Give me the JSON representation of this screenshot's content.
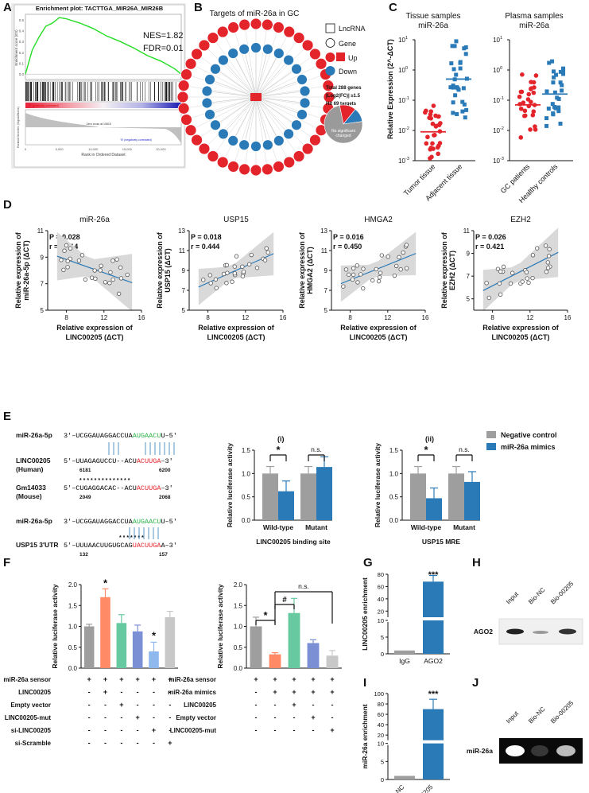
{
  "panels": {
    "A": "A",
    "B": "B",
    "C": "C",
    "D": "D",
    "E": "E",
    "F": "F",
    "G": "G",
    "H": "H",
    "I": "I",
    "J": "J"
  },
  "colors": {
    "red": "#e3242b",
    "blue": "#2a7ab8",
    "gray": "#9e9e9e",
    "green": "#2db34a",
    "orange": "#ff8a65",
    "mint": "#66c9a0",
    "purple": "#7b8fd4",
    "lightblue": "#8fb8ee",
    "lightgray": "#c8c8c8"
  },
  "panelA": {
    "title": "Enrichment plot: TACTTGA_MIR26A_MIR26B",
    "nes": "NES=1.82",
    "fdr": "FDR=0.01",
    "ylabel": "Enrichment score (ES)",
    "ylabel2": "Ranked list metric (Signal2Noise)",
    "xlabel": "Rank in Ordered Dataset",
    "pos_label": "'P' (positively correlated)",
    "neg_label": "'N' (negatively correlated)",
    "zero_cross": "Zero cross at 10815",
    "es_ticks": [
      "0.5",
      "0.4",
      "0.3",
      "0.2",
      "0.1",
      "0.0"
    ],
    "x_ticks": [
      "0",
      "5,000",
      "10,000",
      "15,000",
      "20,000"
    ]
  },
  "panelB": {
    "title": "Targets of miR-26a in GC",
    "legend": {
      "lncrna": "LncRNA",
      "gene": "Gene",
      "up": "Up",
      "down": "Down"
    },
    "stats_line1": "Total 288 genes",
    "stats_line2": "|Log2(FC)| ≥1.5",
    "stats_line3": "Hit 69 targets",
    "center_label": "LINC00205",
    "pie_labels": [
      "Up",
      "Down",
      "No significant changed"
    ],
    "pie_values": [
      14,
      12,
      74
    ]
  },
  "panelC": {
    "title_left": "Tissue samples\nmiR-26a",
    "title_left_1": "Tissue samples",
    "title_left_2": "miR-26a",
    "title_right_1": "Plasma samples",
    "title_right_2": "miR-26a",
    "ylabel": "Relative Expression (2^-ΔCT)",
    "yticks_left": [
      "10^1",
      "10^0",
      "10^-1",
      "10^-2",
      "10^-3"
    ],
    "yticks_right": [
      "10^1",
      "10^0",
      "10^-1",
      "10^-2",
      "10^-3"
    ],
    "xcats_left": [
      "Tumor tissue",
      "Adjacent tissue"
    ],
    "xcats_right": [
      "GC patients",
      "Healthy controls"
    ]
  },
  "panelD": [
    {
      "title": "miR-26a",
      "p": "P = 0.028",
      "r": "r = 0.414",
      "ylabel": "Relative expression of miR-26a-5p (ΔCT)",
      "yl1": "Relative expression of",
      "yl2": "miR-26a-5p (ΔCT)",
      "yticks": [
        "11",
        "9",
        "7",
        "5"
      ],
      "xticks": [
        "8",
        "12",
        "16"
      ],
      "xl1": "Relative expression of",
      "xl2": "LINC00205 (ΔCT)"
    },
    {
      "title": "USP15",
      "p": "P = 0.018",
      "r": "r = 0.444",
      "yl1": "Relative expression of",
      "yl2": "USP15 (ΔCT)",
      "yticks": [
        "13",
        "11",
        "9",
        "7",
        "5"
      ],
      "xticks": [
        "8",
        "12",
        "16"
      ],
      "xl1": "Relative expression of",
      "xl2": "LINC00205 (ΔCT)"
    },
    {
      "title": "HMGA2",
      "p": "P = 0.016",
      "r": "r = 0.450",
      "yl1": "Relative expression of",
      "yl2": "HMGA2 (ΔCT)",
      "yticks": [
        "13",
        "11",
        "9",
        "7",
        "5"
      ],
      "xticks": [
        "8",
        "12",
        "16"
      ],
      "xl1": "Relative expression of",
      "xl2": "LINC00205 (ΔCT)"
    },
    {
      "title": "EZH2",
      "p": "P = 0.026",
      "r": "r = 0.421",
      "yl1": "Relative expression of",
      "yl2": "EZH2 (ΔCT)",
      "yticks": [
        "11",
        "9",
        "7",
        "5"
      ],
      "xticks": [
        "8",
        "12",
        "16"
      ],
      "xl1": "Relative expression of",
      "xl2": "LINC00205 (ΔCT)"
    }
  ],
  "panelE": {
    "seq": [
      {
        "name": "miR-26a-5p",
        "prefix": "3′–UCGGAUAGGACCUA",
        "hl": "AUGAACU",
        "suffix": "U–5′",
        "hlcolor": "green"
      },
      {
        "name": "LINC00205",
        "name2": "(Human)",
        "prefix": "5′–UUAGAGUCCU--ACU",
        "hl": "ACUUGA",
        "suffix": "–3′",
        "hlcolor": "red",
        "n1": "6181",
        "n2": "6200"
      },
      {
        "name": "Gm14033",
        "name2": "(Mouse)",
        "prefix": "5′–CUGAGGACAC--ACU",
        "hl": "ACUUGA",
        "suffix": "–3′",
        "hlcolor": "red",
        "n1": "2049",
        "n2": "2068",
        "stars": "*    *   *   * * * * * * * * * * *"
      },
      {
        "name": "miR-26a-5p",
        "prefix": "3′–UCGGAUAGGACCUA",
        "hl": "AUGAACU",
        "suffix": "U–5′",
        "hlcolor": "green"
      },
      {
        "name": "USP15 3′UTR",
        "prefix": "5′–UUUAACUUGUGCAG",
        "hl": "UACUUGA",
        "suffix": "A–3′",
        "hlcolor": "red",
        "n1": "132",
        "n2": "157",
        "stars": "* * * * * * *"
      }
    ],
    "sub_i": "(i)",
    "sub_ii": "(ii)",
    "legend": [
      "Negative control",
      "miR-26a mimics"
    ],
    "ylabel": "Relative luciferase activity",
    "yticks": [
      "1.5",
      "1.0",
      "0.5",
      "0.0"
    ],
    "i_cats": [
      "Wild-type",
      "Mutant"
    ],
    "i_xlabel": "LINC00205 binding site",
    "ii_cats": [
      "Wild-type",
      "Mutant"
    ],
    "ii_xlabel": "USP15 MRE",
    "sig": [
      "*",
      "n.s."
    ]
  },
  "panelF": {
    "ylabel": "Relative luciferase activity",
    "yticks_left": [
      "2.0",
      "1.5",
      "1.0",
      "0.5",
      "0.0"
    ],
    "yticks_right": [
      "2.0",
      "1.5",
      "1.0",
      "0.5",
      "0.0"
    ],
    "rows_left": [
      {
        "label": "miR-26a sensor",
        "vals": [
          "+",
          "+",
          "+",
          "+",
          "+",
          "+"
        ]
      },
      {
        "label": "LINC00205",
        "vals": [
          "-",
          "+",
          "-",
          "-",
          "-",
          "-"
        ]
      },
      {
        "label": "Empty vector",
        "vals": [
          "-",
          "-",
          "+",
          "-",
          "-",
          "-"
        ]
      },
      {
        "label": "LINC00205-mut",
        "vals": [
          "-",
          "-",
          "-",
          "+",
          "-",
          "-"
        ]
      },
      {
        "label": "si-LINC00205",
        "vals": [
          "-",
          "-",
          "-",
          "-",
          "+",
          "-"
        ]
      },
      {
        "label": "si-Scramble",
        "vals": [
          "-",
          "-",
          "-",
          "-",
          "-",
          "+"
        ]
      }
    ],
    "rows_right": [
      {
        "label": "miR-26a sensor",
        "vals": [
          "+",
          "+",
          "+",
          "+",
          "+"
        ]
      },
      {
        "label": "miR-26a mimics",
        "vals": [
          "-",
          "+",
          "+",
          "+",
          "+"
        ]
      },
      {
        "label": "LINC00205",
        "vals": [
          "-",
          "-",
          "+",
          "-",
          "-"
        ]
      },
      {
        "label": "Empty vector",
        "vals": [
          "-",
          "-",
          "-",
          "+",
          "-"
        ]
      },
      {
        "label": "LINC00205-mut",
        "vals": [
          "-",
          "-",
          "-",
          "-",
          "+"
        ]
      }
    ],
    "sig_left": [
      "*",
      "*"
    ],
    "sig_right": [
      "*",
      "#",
      "n.s."
    ]
  },
  "panelG": {
    "ylabel": "LINC00205 enrichment",
    "cats": [
      "IgG",
      "AGO2"
    ],
    "sig": "***",
    "yticks": [
      "80",
      "60",
      "40",
      "20",
      "10",
      "5",
      "0"
    ]
  },
  "panelH": {
    "lanes": [
      "Input",
      "Bio-NC",
      "Bio-00205"
    ],
    "row_label": "AGO2"
  },
  "panelI": {
    "ylabel": "miR-26a enrichment",
    "cats": [
      "Bio-NC",
      "Bio-00205"
    ],
    "sig": "***",
    "yticks": [
      "100",
      "80",
      "60",
      "40",
      "20",
      "10",
      "5",
      "0"
    ]
  },
  "panelJ": {
    "lanes": [
      "Input",
      "Bio-NC",
      "Bio-00205"
    ],
    "row_label": "miR-26a"
  },
  "chart_data": [
    {
      "type": "line",
      "title": "Enrichment plot: TACTTGA_MIR26A_MIR26B",
      "xlabel": "Rank in Ordered Dataset",
      "ylabel": "Enrichment score (ES)",
      "ylim": [
        -0.05,
        0.55
      ],
      "x": [
        0,
        1000,
        2000,
        3000,
        4000,
        5000,
        6000,
        8000,
        10000,
        12000,
        14000,
        16000,
        18000,
        20000,
        22000,
        23000
      ],
      "series": [
        {
          "values": [
            0,
            0.22,
            0.34,
            0.44,
            0.47,
            0.52,
            0.51,
            0.47,
            0.42,
            0.35,
            0.3,
            0.24,
            0.17,
            0.12,
            0.05,
            0.0
          ]
        }
      ]
    },
    {
      "type": "pie",
      "title": "Targets of miR-26a in GC",
      "categories": [
        "Up",
        "Down",
        "No significant changed"
      ],
      "values": [
        14,
        12,
        74
      ]
    },
    {
      "type": "scatter",
      "title": "Tissue samples miR-26a",
      "categories": [
        "Tumor tissue",
        "Adjacent tissue"
      ],
      "ylabel": "Relative Expression (2^-ΔCT)",
      "log_y": true,
      "ylim": [
        0.001,
        10
      ],
      "means": [
        0.009,
        0.5
      ]
    },
    {
      "type": "scatter",
      "title": "Plasma samples miR-26a",
      "categories": [
        "GC patients",
        "Healthy controls"
      ],
      "ylabel": "Relative Expression (2^-ΔCT)",
      "log_y": true,
      "ylim": [
        0.001,
        10
      ],
      "means": [
        0.07,
        0.16
      ]
    },
    {
      "type": "scatter",
      "title": "miR-26a",
      "annotations": [
        "P = 0.028",
        "r = 0.414"
      ],
      "xlim": [
        6,
        16
      ],
      "ylim": [
        5,
        11
      ]
    },
    {
      "type": "scatter",
      "title": "USP15",
      "annotations": [
        "P = 0.018",
        "r = 0.444"
      ],
      "xlim": [
        6,
        16
      ],
      "ylim": [
        5,
        13
      ]
    },
    {
      "type": "scatter",
      "title": "HMGA2",
      "annotations": [
        "P = 0.016",
        "r = 0.450"
      ],
      "xlim": [
        6,
        16
      ],
      "ylim": [
        5,
        13
      ]
    },
    {
      "type": "scatter",
      "title": "EZH2",
      "annotations": [
        "P = 0.026",
        "r = 0.421"
      ],
      "xlim": [
        6,
        16
      ],
      "ylim": [
        4,
        11
      ]
    },
    {
      "type": "bar",
      "title": "(i)",
      "xlabel": "LINC00205 binding site",
      "ylabel": "Relative luciferase activity",
      "ylim": [
        0,
        1.5
      ],
      "categories": [
        "Wild-type",
        "Mutant"
      ],
      "series": [
        {
          "name": "Negative control",
          "values": [
            1.0,
            1.0
          ]
        },
        {
          "name": "miR-26a mimics",
          "values": [
            0.62,
            1.14
          ]
        }
      ]
    },
    {
      "type": "bar",
      "title": "(ii)",
      "xlabel": "USP15 MRE",
      "ylabel": "Relative luciferase activity",
      "ylim": [
        0,
        1.5
      ],
      "categories": [
        "Wild-type",
        "Mutant"
      ],
      "series": [
        {
          "name": "Negative control",
          "values": [
            1.0,
            1.0
          ]
        },
        {
          "name": "miR-26a mimics",
          "values": [
            0.47,
            0.82
          ]
        }
      ]
    },
    {
      "type": "bar",
      "ylabel": "Relative luciferase activity",
      "ylim": [
        0,
        2.0
      ],
      "values": [
        1.0,
        1.7,
        1.08,
        0.88,
        0.4,
        1.22
      ]
    },
    {
      "type": "bar",
      "ylabel": "Relative luciferase activity",
      "ylim": [
        0,
        2.0
      ],
      "values": [
        1.0,
        0.33,
        1.32,
        0.6,
        0.3
      ]
    },
    {
      "type": "bar",
      "ylabel": "LINC00205 enrichment",
      "categories": [
        "IgG",
        "AGO2"
      ],
      "values": [
        1,
        68
      ]
    },
    {
      "type": "bar",
      "ylabel": "miR-26a enrichment",
      "categories": [
        "Bio-NC",
        "Bio-00205"
      ],
      "values": [
        1,
        70
      ]
    }
  ]
}
